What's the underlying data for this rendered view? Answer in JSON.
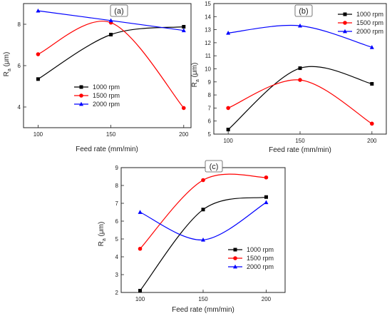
{
  "chart_data": [
    {
      "panel": "(a)",
      "type": "line",
      "x": [
        100,
        150,
        200
      ],
      "xlim": [
        90,
        205
      ],
      "ylim": [
        3,
        9
      ],
      "yticks": [
        4,
        6,
        8
      ],
      "xticks": [
        100,
        150,
        200
      ],
      "xlabel": "Feed rate (mm/min)",
      "ylabel": "Ra (μm)",
      "legend": "center-right",
      "series": [
        {
          "name": "1000 rpm",
          "marker": "square",
          "color": "#000000",
          "values": [
            5.35,
            7.5,
            7.88
          ]
        },
        {
          "name": "1500 rpm",
          "marker": "circle",
          "color": "#ff0000",
          "values": [
            6.55,
            8.08,
            3.95
          ]
        },
        {
          "name": "2000 rpm",
          "marker": "triangle",
          "color": "#0000ff",
          "values": [
            8.65,
            8.18,
            7.7
          ]
        }
      ]
    },
    {
      "panel": "(b)",
      "type": "line",
      "x": [
        100,
        150,
        200
      ],
      "xlim": [
        90,
        210
      ],
      "ylim": [
        5,
        15
      ],
      "yticks": [
        5,
        6,
        7,
        8,
        9,
        10,
        11,
        12,
        13,
        14,
        15
      ],
      "xticks": [
        100,
        150,
        200
      ],
      "xlabel": "Feed rate (mm/min)",
      "ylabel": "Ra (μm)",
      "legend": "top-right",
      "series": [
        {
          "name": "1000 rpm",
          "marker": "square",
          "color": "#000000",
          "values": [
            5.35,
            10.05,
            8.85
          ]
        },
        {
          "name": "1500 rpm",
          "marker": "circle",
          "color": "#ff0000",
          "values": [
            7.0,
            9.15,
            5.8
          ]
        },
        {
          "name": "2000 rpm",
          "marker": "triangle",
          "color": "#0000ff",
          "values": [
            12.75,
            13.3,
            11.65
          ]
        }
      ]
    },
    {
      "panel": "(c)",
      "type": "line",
      "x": [
        100,
        150,
        200
      ],
      "xlim": [
        85,
        215
      ],
      "ylim": [
        2,
        9
      ],
      "yticks": [
        2,
        3,
        4,
        5,
        6,
        7,
        8,
        9
      ],
      "xticks": [
        100,
        150,
        200
      ],
      "xlabel": "Feed rate (mm/min)",
      "ylabel": "Ra (μm)",
      "legend": "bottom-right",
      "series": [
        {
          "name": "1000 rpm",
          "marker": "square",
          "color": "#000000",
          "values": [
            2.1,
            6.65,
            7.35
          ]
        },
        {
          "name": "1500 rpm",
          "marker": "circle",
          "color": "#ff0000",
          "values": [
            4.45,
            8.3,
            8.45
          ]
        },
        {
          "name": "2000 rpm",
          "marker": "triangle",
          "color": "#0000ff",
          "values": [
            6.5,
            4.95,
            7.05
          ]
        }
      ]
    }
  ]
}
